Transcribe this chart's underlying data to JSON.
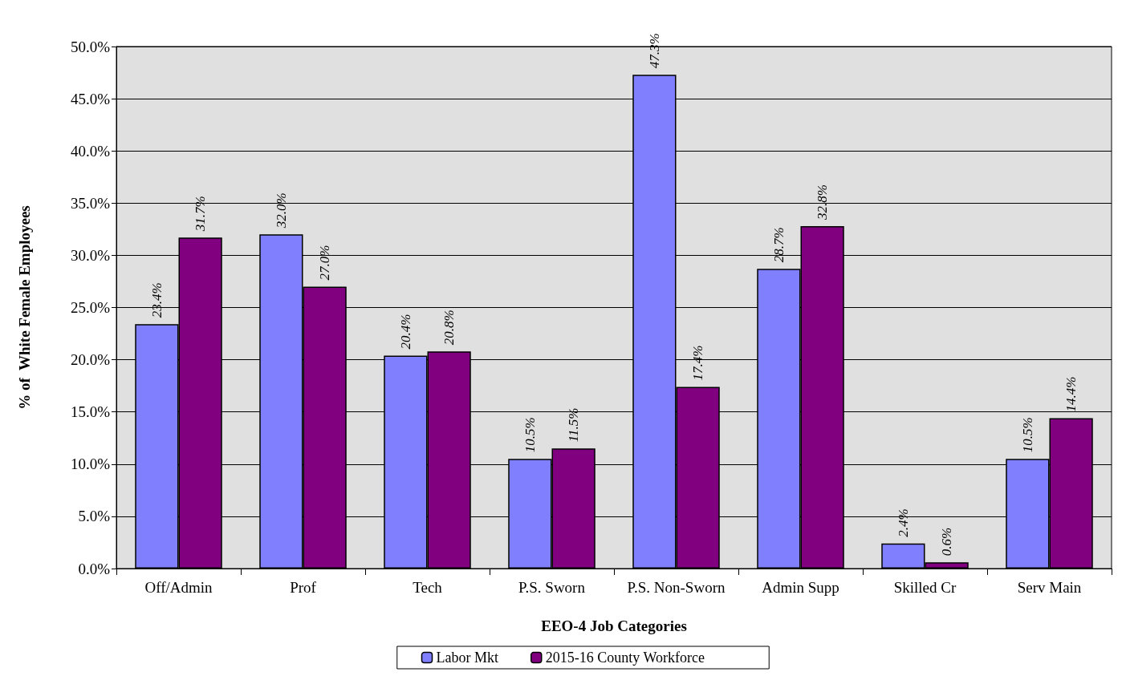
{
  "chart_data": {
    "type": "bar",
    "xlabel": "EEO-4 Job Categories",
    "ylabel": "% of  White Female Employees",
    "categories": [
      "Off/Admin",
      "Prof",
      "Tech",
      "P.S. Sworn",
      "P.S. Non-Sworn",
      "Admin Supp",
      "Skilled Cr",
      "Serv Main"
    ],
    "series": [
      {
        "name": "Labor Mkt",
        "color": "#8080ff",
        "values": [
          23.4,
          32.0,
          20.4,
          10.5,
          47.3,
          28.7,
          2.4,
          10.5
        ],
        "value_labels": [
          "23.4%",
          "32.0%",
          "20.4%",
          "10.5%",
          "47.3%",
          "28.7%",
          "2.4%",
          "10.5%"
        ]
      },
      {
        "name": "2015-16 County Workforce",
        "color": "#800080",
        "values": [
          31.7,
          27.0,
          20.8,
          11.5,
          17.4,
          32.8,
          0.6,
          14.4
        ],
        "value_labels": [
          "31.7%",
          "27.0%",
          "20.8%",
          "11.5%",
          "17.4%",
          "32.8%",
          "0.6%",
          "14.4%"
        ]
      }
    ],
    "ylim": [
      0,
      50
    ],
    "yticks": [
      {
        "value": 0,
        "label": "0.0%"
      },
      {
        "value": 5,
        "label": "5.0%"
      },
      {
        "value": 10,
        "label": "10.0%"
      },
      {
        "value": 15,
        "label": "15.0%"
      },
      {
        "value": 20,
        "label": "20.0%"
      },
      {
        "value": 25,
        "label": "25.0%"
      },
      {
        "value": 30,
        "label": "30.0%"
      },
      {
        "value": 35,
        "label": "35.0%"
      },
      {
        "value": 40,
        "label": "40.0%"
      },
      {
        "value": 45,
        "label": "45.0%"
      },
      {
        "value": 50,
        "label": "50.0%"
      }
    ],
    "grid": "y",
    "legend": "bottom"
  }
}
